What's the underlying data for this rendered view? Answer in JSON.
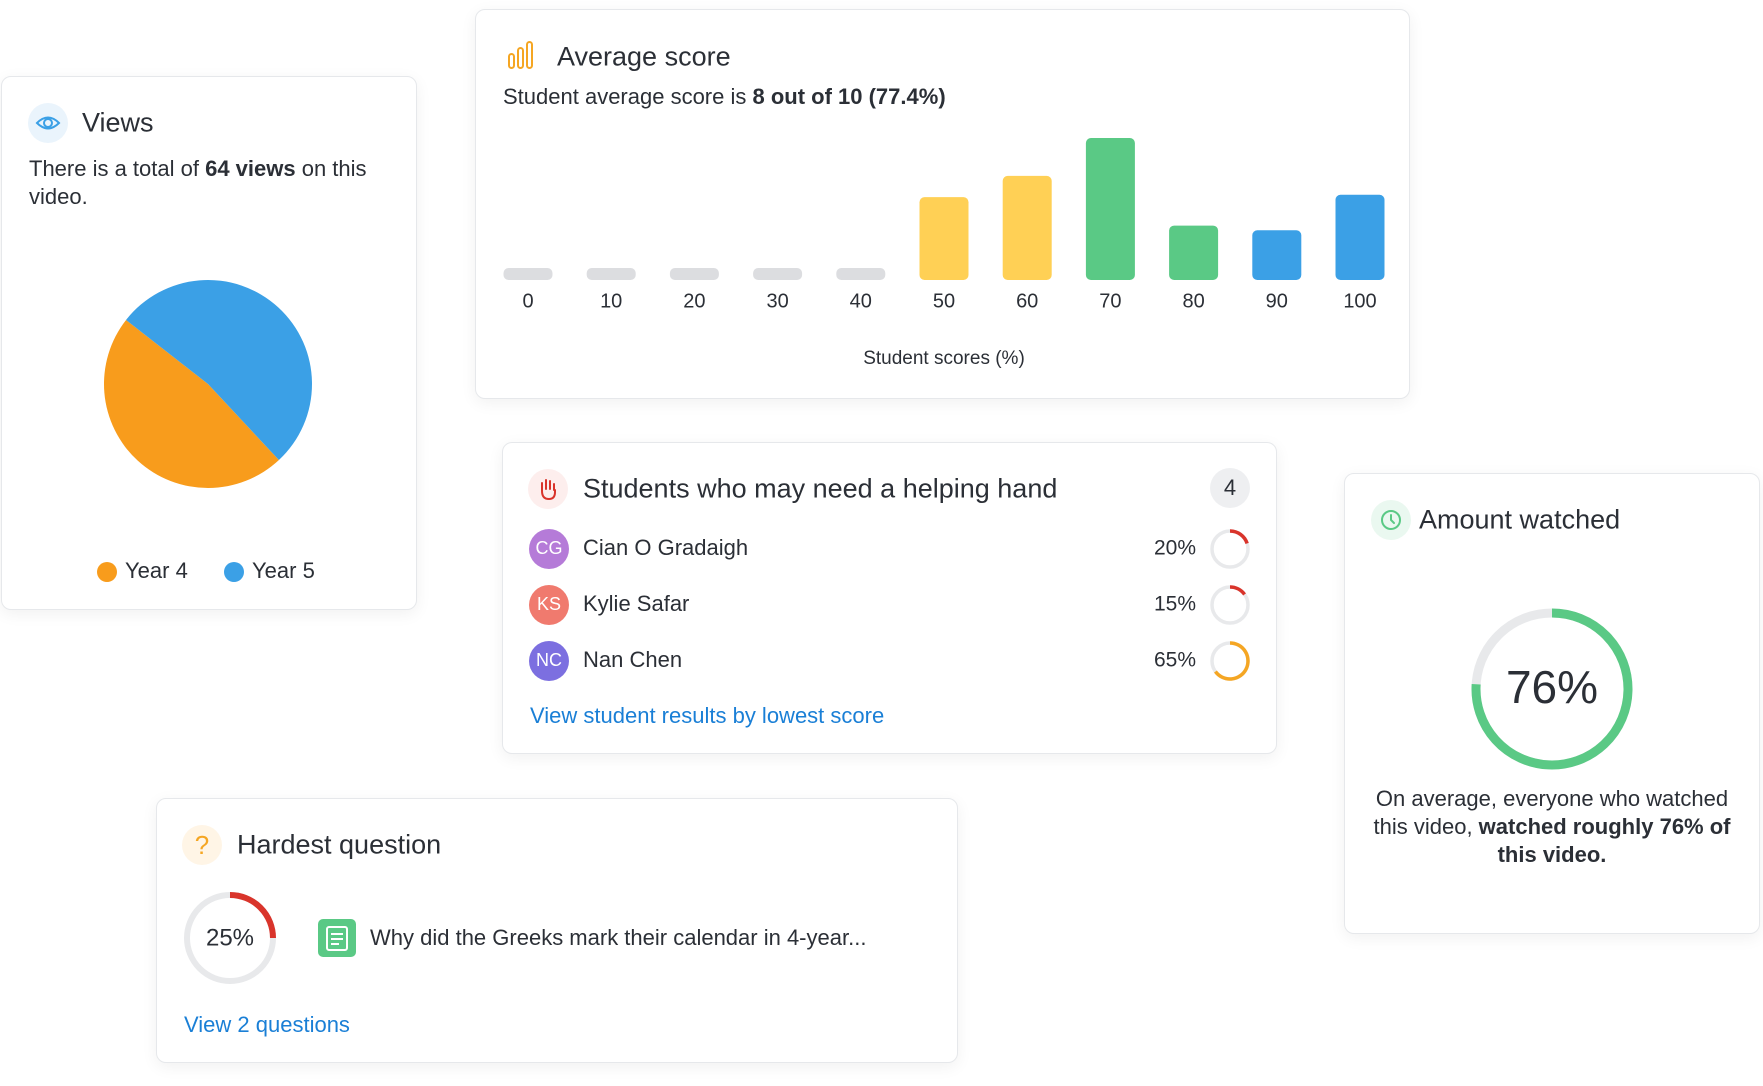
{
  "chart_data": [
    {
      "type": "pie",
      "title": "Views",
      "text_before": "There is a total of ",
      "text_bold": "64 views",
      "text_after": " on this video.",
      "categories": [
        "Year 4",
        "Year 5"
      ],
      "values": [
        47.5,
        52.5
      ],
      "colors": [
        "#f89c1c",
        "#3ba0e6"
      ]
    },
    {
      "type": "bar",
      "title": "Average score",
      "subtitle_before": "Student average score is ",
      "subtitle_bold": "8 out of 10 (77.4%)",
      "categories": [
        0,
        10,
        20,
        30,
        40,
        50,
        60,
        70,
        80,
        90,
        100
      ],
      "values": [
        0,
        0,
        0,
        0,
        0,
        3.5,
        4.4,
        6,
        2.3,
        2.1,
        3.6
      ],
      "colors": [
        "#dcdde0",
        "#dcdde0",
        "#dcdde0",
        "#dcdde0",
        "#dcdde0",
        "#ffd055",
        "#ffd055",
        "#5ac985",
        "#5ac985",
        "#3ba0e6",
        "#3ba0e6"
      ],
      "x_label": "Student scores (%)",
      "ylim": [
        0,
        6
      ]
    }
  ],
  "helping": {
    "title": "Students who may need a helping hand",
    "count": 4,
    "students": [
      {
        "initials": "CG",
        "name": "Cian O Gradaigh",
        "score": 20,
        "score_label": "20%",
        "color": "#b57bd8",
        "ring_color": "#d9342b"
      },
      {
        "initials": "KS",
        "name": "Kylie Safar",
        "score": 15,
        "score_label": "15%",
        "color": "#f07a6e",
        "ring_color": "#d9342b"
      },
      {
        "initials": "NC",
        "name": "Nan Chen",
        "score": 65,
        "score_label": "65%",
        "color": "#7c6fe0",
        "ring_color": "#f5a623"
      }
    ],
    "link": "View student results by lowest score"
  },
  "amount": {
    "title": "Amount watched",
    "value": 76,
    "value_label": "76%",
    "text_before": "On average, everyone who watched this video, ",
    "text_bold": "watched roughly 76% of this video.",
    "color": "#5ac985"
  },
  "hardest": {
    "icon": "?",
    "title": "Hardest question",
    "value": 25,
    "value_label": "25%",
    "color": "#d9342b",
    "question": "Why did the Greeks mark their calendar in 4-year...",
    "link": "View 2 questions"
  }
}
